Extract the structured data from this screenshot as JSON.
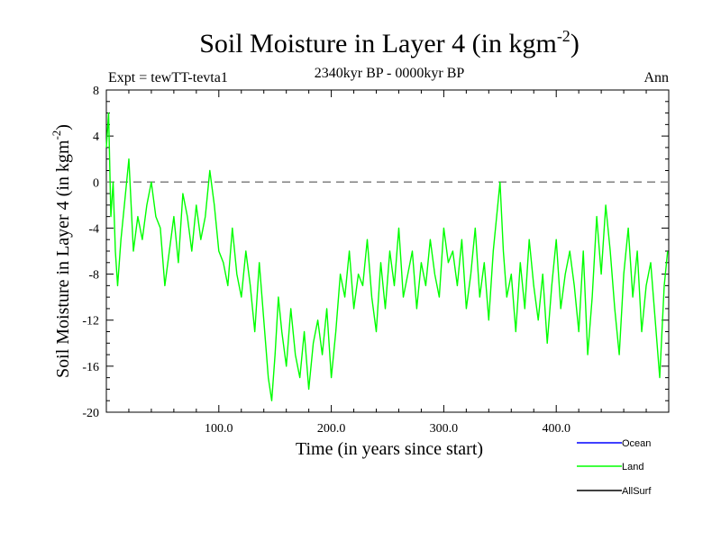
{
  "chart_data": {
    "type": "line",
    "title": "Soil Moisture in Layer 4 (in kgm",
    "title_superscript": "-2",
    "title_close": ")",
    "subtitle": "2340kyr BP - 0000kyr BP",
    "left_label": "Expt = tewTT-tevta1",
    "right_label": "Ann",
    "xlabel": "Time (in years since start)",
    "ylabel": "Soil Moisture in Layer 4 (in kgm",
    "ylabel_superscript": "-2",
    "ylabel_close": ")",
    "xlim": [
      0,
      500
    ],
    "ylim": [
      -20,
      8
    ],
    "x_ticks": [
      100,
      200,
      300,
      400
    ],
    "x_tick_labels": [
      "100.0",
      "200.0",
      "300.0",
      "400.0"
    ],
    "y_ticks": [
      8,
      4,
      0,
      -4,
      -8,
      -12,
      -16,
      -20
    ],
    "y_tick_labels": [
      "8",
      "4",
      "0",
      "-4",
      "-8",
      "-12",
      "-16",
      "-20"
    ],
    "reference_line": {
      "y": 0,
      "style": "dashed",
      "color": "#808080"
    },
    "legend": [
      {
        "name": "Ocean",
        "color": "#0000ff"
      },
      {
        "name": "Land",
        "color": "#00ff00"
      },
      {
        "name": "AllSurf",
        "color": "#000000"
      }
    ],
    "series": [
      {
        "name": "Land",
        "color": "#00ff00",
        "x": [
          0,
          2,
          4,
          6,
          8,
          10,
          13,
          16,
          20,
          24,
          28,
          32,
          36,
          40,
          44,
          48,
          52,
          56,
          60,
          64,
          68,
          72,
          76,
          80,
          84,
          88,
          92,
          96,
          100,
          104,
          108,
          112,
          116,
          120,
          124,
          128,
          132,
          136,
          140,
          144,
          147,
          150,
          153,
          156,
          160,
          164,
          168,
          172,
          176,
          180,
          184,
          188,
          192,
          196,
          200,
          204,
          208,
          212,
          216,
          220,
          224,
          228,
          232,
          236,
          240,
          244,
          248,
          252,
          256,
          260,
          264,
          268,
          272,
          276,
          280,
          284,
          288,
          292,
          296,
          300,
          304,
          308,
          312,
          316,
          320,
          324,
          328,
          332,
          336,
          340,
          344,
          348,
          350,
          353,
          356,
          360,
          364,
          368,
          372,
          376,
          380,
          384,
          388,
          392,
          396,
          400,
          404,
          408,
          412,
          416,
          420,
          424,
          428,
          432,
          436,
          440,
          444,
          448,
          452,
          456,
          460,
          464,
          468,
          472,
          476,
          480,
          484,
          488,
          492,
          496,
          499
        ],
        "values": [
          3,
          6,
          -3,
          0,
          -6,
          -9,
          -5,
          -2,
          2,
          -6,
          -3,
          -5,
          -2,
          0,
          -3,
          -4,
          -9,
          -6,
          -3,
          -7,
          -1,
          -3,
          -6,
          -2,
          -5,
          -3,
          1,
          -2,
          -6,
          -7,
          -9,
          -4,
          -8,
          -10,
          -6,
          -9,
          -13,
          -7,
          -12,
          -17,
          -19,
          -15,
          -10,
          -13,
          -16,
          -11,
          -15,
          -17,
          -13,
          -18,
          -14,
          -12,
          -15,
          -11,
          -17,
          -13,
          -8,
          -10,
          -6,
          -11,
          -8,
          -9,
          -5,
          -10,
          -13,
          -7,
          -11,
          -6,
          -9,
          -4,
          -10,
          -8,
          -6,
          -11,
          -7,
          -9,
          -5,
          -8,
          -10,
          -4,
          -7,
          -6,
          -9,
          -5,
          -11,
          -8,
          -4,
          -10,
          -7,
          -12,
          -6,
          -2,
          0,
          -6,
          -10,
          -8,
          -13,
          -7,
          -11,
          -5,
          -9,
          -12,
          -8,
          -14,
          -9,
          -5,
          -11,
          -8,
          -6,
          -9,
          -13,
          -6,
          -15,
          -10,
          -3,
          -8,
          -2,
          -6,
          -11,
          -15,
          -8,
          -4,
          -10,
          -6,
          -13,
          -9,
          -7,
          -12,
          -17,
          -9,
          -6
        ]
      }
    ]
  }
}
